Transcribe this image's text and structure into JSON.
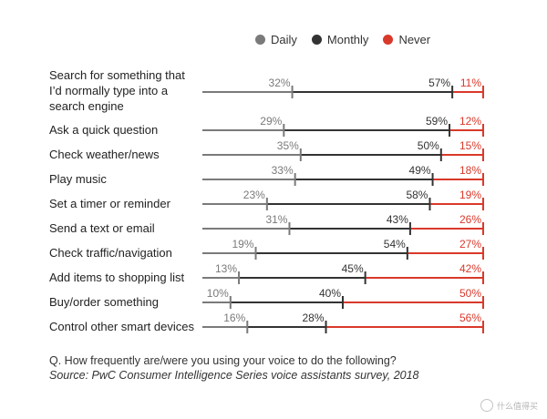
{
  "legend": [
    {
      "label": "Daily",
      "color": "#7a7a7a"
    },
    {
      "label": "Monthly",
      "color": "#333333"
    },
    {
      "label": "Never",
      "color": "#d9392b"
    }
  ],
  "chart_data": {
    "type": "bar",
    "subtype": "cumulative-timeline",
    "categories": [
      "Search for something that I’d normally type into a search engine",
      "Ask a quick question",
      "Check weather/news",
      "Play music",
      "Set a timer or reminder",
      "Send a text or email",
      "Check traffic/navigation",
      "Add items to shopping list",
      "Buy/order something",
      "Control other smart devices"
    ],
    "category_lines": [
      [
        "Search for something that",
        "I’d normally type into a",
        "search engine"
      ],
      [
        "Ask a quick question"
      ],
      [
        "Check weather/news"
      ],
      [
        "Play music"
      ],
      [
        "Set a timer or reminder"
      ],
      [
        "Send a text or email"
      ],
      [
        "Check traffic/navigation"
      ],
      [
        "Add items to shopping list"
      ],
      [
        "Buy/order something"
      ],
      [
        "Control other smart devices"
      ]
    ],
    "series": [
      {
        "name": "Daily",
        "values": [
          32,
          29,
          35,
          33,
          23,
          31,
          19,
          13,
          10,
          16
        ]
      },
      {
        "name": "Monthly",
        "values": [
          57,
          59,
          50,
          49,
          58,
          43,
          54,
          45,
          40,
          28
        ]
      },
      {
        "name": "Never",
        "values": [
          11,
          12,
          15,
          18,
          19,
          26,
          27,
          42,
          50,
          56
        ]
      }
    ],
    "value_suffix": "%",
    "xlim": [
      0,
      100
    ],
    "colors": {
      "daily": "#7a7a7a",
      "monthly": "#333333",
      "never": "#d9392b"
    }
  },
  "question": "Q. How frequently are/were you using your voice to do the following?",
  "source": "Source: PwC Consumer Intelligence Series voice assistants survey, 2018",
  "watermark": "什么值得买"
}
